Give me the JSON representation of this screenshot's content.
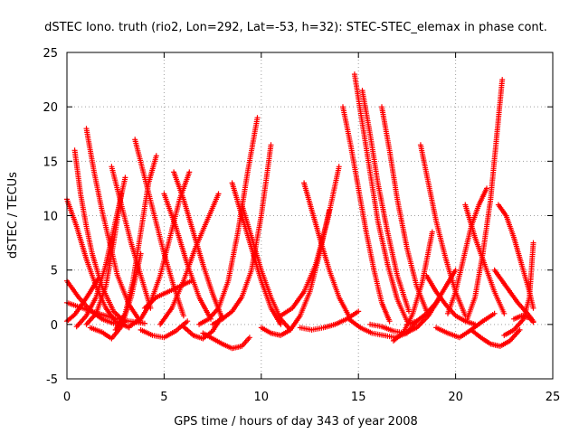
{
  "chart_data": {
    "type": "scatter",
    "title": "dSTEC Iono. truth (rio2, Lon=292, Lat=-53, h=32): STEC-STEC_elemax in phase cont.",
    "xlabel": "GPS time / hours of day 343 of year 2008",
    "ylabel": "dSTEC  / TECUs",
    "xlim": [
      0,
      25
    ],
    "ylim": [
      -5,
      25
    ],
    "xticks": [
      0,
      5,
      10,
      15,
      20,
      25
    ],
    "yticks": [
      -5,
      0,
      5,
      10,
      15,
      20,
      25
    ],
    "xtick_labels": [
      "0",
      "5",
      "10",
      "15",
      "20",
      "25"
    ],
    "ytick_labels": [
      "-5",
      "0",
      "5",
      "10",
      "15",
      "20",
      "25"
    ],
    "grid": true,
    "marker": "plus",
    "color": "#ff0000",
    "arcs": [
      {
        "x": [
          0.0,
          0.5,
          1.0,
          1.5,
          2.0,
          2.5,
          3.2
        ],
        "y": [
          11.5,
          9.0,
          6.0,
          3.5,
          1.5,
          0.3,
          -0.3
        ]
      },
      {
        "x": [
          0.0,
          0.6,
          1.2,
          1.8,
          2.4,
          3.0
        ],
        "y": [
          4.0,
          2.5,
          1.3,
          0.5,
          0.1,
          0.0
        ]
      },
      {
        "x": [
          0.0,
          0.8,
          1.6,
          2.4,
          3.2,
          4.0
        ],
        "y": [
          2.0,
          1.5,
          1.0,
          0.6,
          0.3,
          0.1
        ]
      },
      {
        "x": [
          0.0,
          0.4,
          0.8,
          1.2,
          1.6
        ],
        "y": [
          0.3,
          0.9,
          1.9,
          3.0,
          4.2
        ]
      },
      {
        "x": [
          0.4,
          0.7,
          1.0,
          1.3,
          1.8,
          2.4,
          3.0
        ],
        "y": [
          16.0,
          12.0,
          9.0,
          6.5,
          3.5,
          1.2,
          0.2
        ]
      },
      {
        "x": [
          1.0,
          1.4,
          1.8,
          2.2,
          2.6,
          3.2,
          3.8
        ],
        "y": [
          18.0,
          14.0,
          10.5,
          7.5,
          4.5,
          1.8,
          0.2
        ]
      },
      {
        "x": [
          0.5,
          1.0,
          1.5,
          2.0,
          2.5,
          3.0
        ],
        "y": [
          -0.2,
          0.8,
          2.5,
          5.5,
          9.5,
          13.5
        ]
      },
      {
        "x": [
          1.0,
          1.5,
          2.0,
          2.4,
          2.8
        ],
        "y": [
          0.0,
          1.0,
          3.5,
          7.5,
          12.0
        ]
      },
      {
        "x": [
          1.2,
          1.8,
          2.3,
          2.8,
          3.3,
          3.8
        ],
        "y": [
          -0.3,
          -0.7,
          -1.3,
          -0.2,
          2.5,
          6.5
        ]
      },
      {
        "x": [
          2.3,
          2.8,
          3.3,
          3.8,
          4.3
        ],
        "y": [
          14.5,
          11.0,
          7.5,
          4.5,
          1.5
        ]
      },
      {
        "x": [
          2.5,
          3.0,
          3.4,
          3.8,
          4.2,
          4.6
        ],
        "y": [
          -0.5,
          1.0,
          4.0,
          8.5,
          13.0,
          15.5
        ]
      },
      {
        "x": [
          3.5,
          4.0,
          4.5,
          5.0,
          5.5,
          6.0
        ],
        "y": [
          17.0,
          13.5,
          10.0,
          6.5,
          3.5,
          0.8
        ]
      },
      {
        "x": [
          3.2,
          3.8,
          4.3,
          4.8,
          5.3,
          5.8,
          6.3
        ],
        "y": [
          -0.2,
          0.5,
          2.0,
          4.5,
          8.0,
          11.5,
          14.0
        ]
      },
      {
        "x": [
          3.8,
          4.4,
          5.0,
          5.6,
          6.2
        ],
        "y": [
          -0.5,
          -1.0,
          -1.2,
          -0.6,
          0.3
        ]
      },
      {
        "x": [
          4.0,
          4.6,
          5.2,
          5.8,
          6.4
        ],
        "y": [
          1.5,
          2.5,
          3.0,
          3.5,
          4.0
        ]
      },
      {
        "x": [
          5.5,
          6.0,
          6.5,
          7.0,
          7.5,
          8.0
        ],
        "y": [
          14.0,
          11.5,
          8.5,
          5.5,
          2.8,
          0.5
        ]
      },
      {
        "x": [
          5.0,
          5.6,
          6.2,
          6.8,
          7.4
        ],
        "y": [
          12.0,
          9.0,
          5.5,
          2.5,
          0.5
        ]
      },
      {
        "x": [
          4.8,
          5.4,
          6.0,
          6.6,
          7.2,
          7.8
        ],
        "y": [
          0.0,
          1.5,
          4.0,
          7.0,
          9.5,
          12.0
        ]
      },
      {
        "x": [
          6.0,
          6.5,
          7.0,
          7.5,
          8.0
        ],
        "y": [
          -0.2,
          -1.0,
          -1.3,
          -0.6,
          0.8
        ]
      },
      {
        "x": [
          6.8,
          7.3,
          7.8,
          8.3,
          8.8,
          9.3,
          9.8
        ],
        "y": [
          0.0,
          0.5,
          1.5,
          4.0,
          8.5,
          14.0,
          19.0
        ]
      },
      {
        "x": [
          7.5,
          8.0,
          8.5,
          9.0,
          9.5,
          10.0,
          10.5
        ],
        "y": [
          0.0,
          0.5,
          1.2,
          2.5,
          5.0,
          10.0,
          16.5
        ]
      },
      {
        "x": [
          7.0,
          7.5,
          8.0,
          8.5,
          9.0,
          9.4
        ],
        "y": [
          -0.8,
          -1.3,
          -1.8,
          -2.2,
          -2.0,
          -1.2
        ]
      },
      {
        "x": [
          8.5,
          9.0,
          9.5,
          10.0,
          10.5,
          11.0
        ],
        "y": [
          13.0,
          10.0,
          7.0,
          4.0,
          1.5,
          0.0
        ]
      },
      {
        "x": [
          9.0,
          9.5,
          10.0,
          10.5,
          11.0,
          11.5
        ],
        "y": [
          11.0,
          8.0,
          5.0,
          2.5,
          0.5,
          -0.5
        ]
      },
      {
        "x": [
          10.0,
          10.5,
          11.0,
          11.5,
          12.0,
          12.5,
          13.0,
          13.5
        ],
        "y": [
          -0.3,
          -0.8,
          -1.0,
          -0.5,
          0.8,
          3.0,
          6.5,
          10.5
        ]
      },
      {
        "x": [
          11.0,
          11.6,
          12.2,
          12.8,
          13.4,
          14.0
        ],
        "y": [
          0.8,
          1.5,
          3.0,
          5.5,
          9.5,
          14.5
        ]
      },
      {
        "x": [
          12.2,
          12.6,
          13.0,
          13.5,
          14.0,
          14.5
        ],
        "y": [
          13.0,
          10.5,
          8.0,
          5.0,
          2.5,
          0.8
        ]
      },
      {
        "x": [
          12.0,
          12.6,
          13.2,
          13.8,
          14.4,
          15.0
        ],
        "y": [
          -0.3,
          -0.5,
          -0.3,
          0.0,
          0.5,
          1.2
        ]
      },
      {
        "x": [
          14.2,
          14.6,
          15.0,
          15.4,
          15.8,
          16.2,
          16.6
        ],
        "y": [
          20.0,
          16.5,
          12.5,
          8.5,
          5.0,
          2.0,
          0.3
        ]
      },
      {
        "x": [
          14.8,
          15.2,
          15.6,
          16.0,
          16.5,
          17.0,
          17.5
        ],
        "y": [
          23.0,
          18.5,
          14.0,
          9.5,
          5.5,
          2.3,
          0.3
        ]
      },
      {
        "x": [
          15.2,
          15.6,
          16.0,
          16.5,
          17.0,
          17.6
        ],
        "y": [
          21.5,
          17.5,
          13.0,
          8.5,
          4.5,
          1.2
        ]
      },
      {
        "x": [
          16.2,
          16.6,
          17.0,
          17.5,
          18.0,
          18.6
        ],
        "y": [
          20.0,
          16.0,
          11.5,
          7.0,
          3.5,
          0.8
        ]
      },
      {
        "x": [
          14.5,
          15.1,
          15.7,
          16.3,
          16.9,
          17.5,
          18.0
        ],
        "y": [
          0.5,
          -0.3,
          -0.8,
          -1.0,
          -1.2,
          -0.8,
          0.3
        ]
      },
      {
        "x": [
          15.6,
          16.2,
          16.8,
          17.4,
          18.0,
          18.6,
          19.2
        ],
        "y": [
          0.0,
          -0.2,
          -0.6,
          -0.8,
          -0.3,
          0.8,
          2.5
        ]
      },
      {
        "x": [
          16.8,
          17.3,
          17.8,
          18.3,
          18.8
        ],
        "y": [
          -1.5,
          -0.8,
          1.0,
          4.0,
          8.5
        ]
      },
      {
        "x": [
          17.5,
          18.0,
          18.5,
          19.0,
          19.5,
          20.0
        ],
        "y": [
          0.0,
          0.3,
          1.0,
          2.0,
          3.5,
          5.0
        ]
      },
      {
        "x": [
          18.2,
          18.6,
          19.0,
          19.5,
          20.0,
          20.5
        ],
        "y": [
          16.5,
          13.0,
          9.5,
          6.0,
          3.0,
          0.8
        ]
      },
      {
        "x": [
          18.5,
          19.0,
          19.5,
          20.0,
          20.5,
          21.0
        ],
        "y": [
          4.5,
          3.0,
          1.8,
          0.8,
          0.3,
          0.0
        ]
      },
      {
        "x": [
          19.0,
          19.6,
          20.2,
          20.8,
          21.4,
          22.0
        ],
        "y": [
          -0.3,
          -0.8,
          -1.2,
          -0.5,
          0.3,
          1.0
        ]
      },
      {
        "x": [
          19.6,
          20.0,
          20.4,
          20.8,
          21.2,
          21.6
        ],
        "y": [
          1.0,
          3.0,
          6.0,
          9.0,
          11.0,
          12.5
        ]
      },
      {
        "x": [
          20.5,
          21.0,
          21.5,
          22.0,
          22.5
        ],
        "y": [
          11.0,
          8.0,
          5.5,
          3.0,
          1.0
        ]
      },
      {
        "x": [
          20.6,
          21.0,
          21.4,
          21.8,
          22.1,
          22.4
        ],
        "y": [
          0.5,
          2.5,
          6.5,
          11.5,
          17.0,
          22.5
        ]
      },
      {
        "x": [
          20.8,
          21.3,
          21.8,
          22.3,
          22.8,
          23.3
        ],
        "y": [
          -0.5,
          -1.2,
          -1.8,
          -2.0,
          -1.5,
          -0.5
        ]
      },
      {
        "x": [
          22.2,
          22.6,
          23.0,
          23.4,
          23.8,
          24.0
        ],
        "y": [
          11.0,
          10.0,
          8.0,
          5.5,
          3.0,
          1.5
        ]
      },
      {
        "x": [
          22.0,
          22.6,
          23.2,
          23.7,
          24.0
        ],
        "y": [
          5.0,
          3.5,
          2.0,
          1.0,
          0.3
        ]
      },
      {
        "x": [
          22.5,
          23.0,
          23.5,
          23.8,
          24.0
        ],
        "y": [
          -1.0,
          -0.5,
          0.5,
          2.5,
          7.5
        ]
      },
      {
        "x": [
          23.0,
          23.4,
          23.8,
          24.0
        ],
        "y": [
          0.5,
          0.8,
          0.6,
          0.2
        ]
      }
    ]
  }
}
